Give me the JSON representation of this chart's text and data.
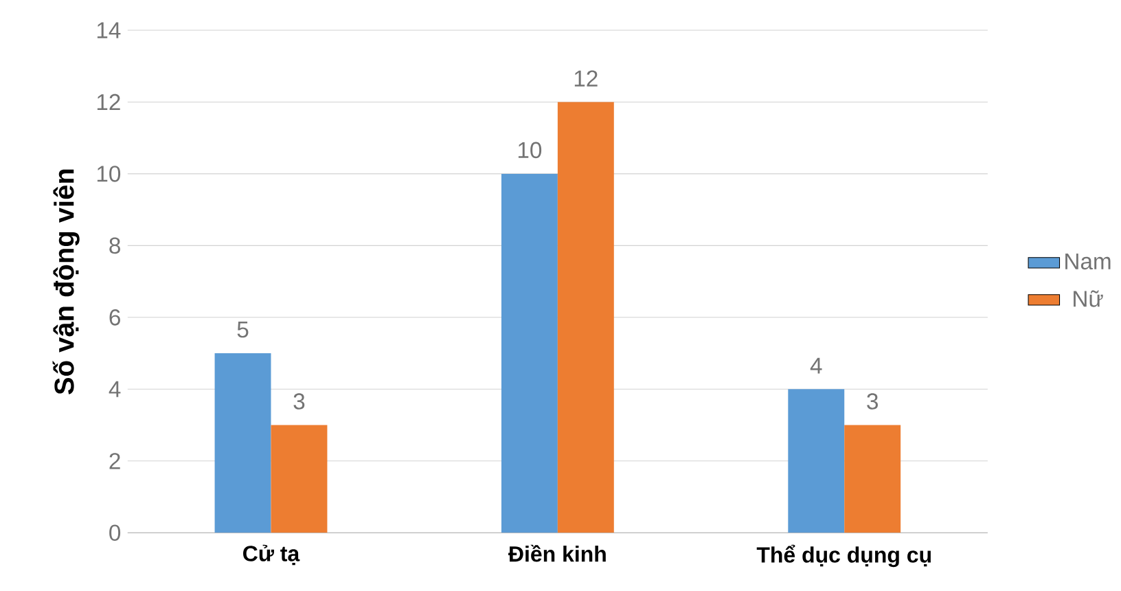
{
  "chart_data": {
    "type": "bar",
    "ylabel": "Số vận động viên",
    "categories": [
      "Cử tạ",
      "Điền kinh",
      "Thể dục dụng cụ"
    ],
    "series": [
      {
        "name": "Nam",
        "color": "#5b9bd5",
        "values": [
          5,
          10,
          4
        ]
      },
      {
        "name": "Nữ",
        "color": "#ed7d31",
        "values": [
          3,
          12,
          3
        ]
      }
    ],
    "ylim": [
      0,
      14
    ],
    "yticks": [
      0,
      2,
      4,
      6,
      8,
      10,
      12,
      14
    ],
    "grid": "y",
    "legend": "right",
    "data_labels": true
  }
}
